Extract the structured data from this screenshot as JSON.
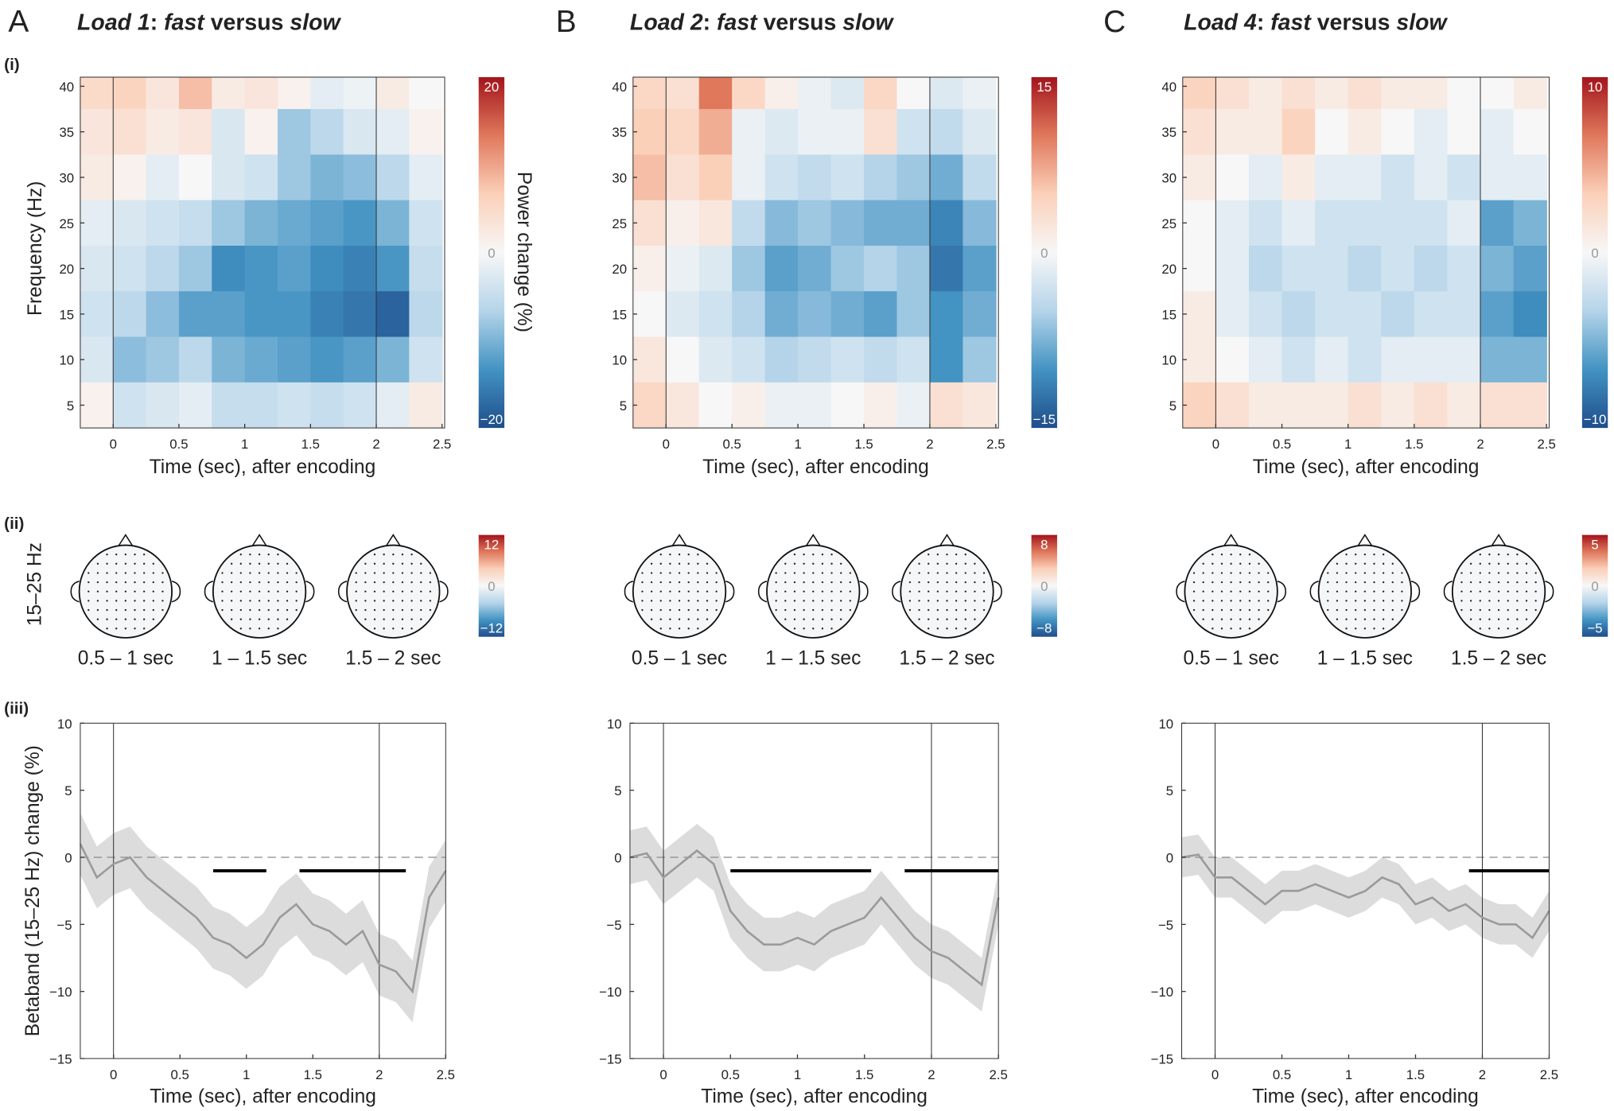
{
  "panels": [
    {
      "letter": "A",
      "title": [
        "Load 1",
        ": ",
        "fast",
        " versus ",
        "slow"
      ],
      "title_italic": [
        true,
        false,
        true,
        false,
        true
      ]
    },
    {
      "letter": "B",
      "title": [
        "Load 2",
        ": ",
        "fast",
        " versus ",
        "slow"
      ],
      "title_italic": [
        true,
        false,
        true,
        false,
        true
      ]
    },
    {
      "letter": "C",
      "title": [
        "Load 4",
        ": ",
        "fast",
        " versus ",
        "slow"
      ],
      "title_italic": [
        true,
        false,
        true,
        false,
        true
      ]
    }
  ],
  "row_labels": [
    "(i)",
    "(ii)",
    "(iii)"
  ],
  "colormap": [
    "#1f4e8c",
    "#4393c3",
    "#b5d4e9",
    "#f7f7f7",
    "#fbd0b9",
    "#e0785c",
    "#a3141c"
  ],
  "topo": {
    "ylabel": "15–25 Hz",
    "panels": [
      {
        "labels": [
          "0.5 – 1 sec",
          "1 – 1.5 sec",
          "1.5 – 2 sec"
        ],
        "clim": [
          -12,
          12
        ],
        "cticks": [
          {
            "value": -12,
            "label": "−12"
          },
          0,
          12
        ]
      },
      {
        "labels": [
          "0.5 – 1 sec",
          "1 – 1.5 sec",
          "1.5 – 2 sec"
        ],
        "clim": [
          -8,
          8
        ],
        "cticks": [
          {
            "value": -8,
            "label": "−8"
          },
          0,
          8
        ]
      },
      {
        "labels": [
          "0.5 – 1 sec",
          "1 – 1.5 sec",
          "1.5 – 2 sec"
        ],
        "clim": [
          -5,
          5
        ],
        "cticks": [
          {
            "value": -5,
            "label": "−5"
          },
          0,
          5
        ]
      }
    ]
  },
  "chart_data": [
    {
      "type": "heatmap",
      "xlabel": "Time (sec), after encoding",
      "ylabel": "Frequency (Hz)",
      "clabel": "Power change (%)",
      "x": [
        -0.125,
        0.125,
        0.375,
        0.625,
        0.875,
        1.125,
        1.375,
        1.625,
        1.875,
        2.125,
        2.375
      ],
      "y": [
        40,
        35,
        30,
        25,
        20,
        15,
        10,
        5
      ],
      "z": [
        [
          5,
          6,
          3,
          8,
          2,
          3,
          1,
          -2,
          -1,
          2,
          0
        ],
        [
          3,
          4,
          2,
          3,
          -3,
          1,
          -8,
          -6,
          -3,
          -2,
          1
        ],
        [
          2,
          1,
          -2,
          0,
          -3,
          -4,
          -8,
          -10,
          -9,
          -6,
          -2
        ],
        [
          -2,
          -3,
          -4,
          -5,
          -8,
          -10,
          -11,
          -12,
          -13,
          -10,
          -4
        ],
        [
          -3,
          -4,
          -6,
          -8,
          -14,
          -13,
          -12,
          -14,
          -15,
          -13,
          -5
        ],
        [
          -4,
          -6,
          -9,
          -12,
          -12,
          -13,
          -13,
          -15,
          -16,
          -18,
          -6
        ],
        [
          -3,
          -9,
          -8,
          -6,
          -10,
          -11,
          -12,
          -13,
          -12,
          -10,
          -4
        ],
        [
          1,
          -4,
          -3,
          -2,
          -5,
          -5,
          -4,
          -5,
          -4,
          -2,
          2
        ]
      ],
      "xlim": [
        -0.25,
        2.52
      ],
      "ylim": [
        2.5,
        41
      ],
      "xticks": [
        0,
        0.5,
        1,
        1.5,
        2,
        2.5
      ],
      "yticks": [
        5,
        10,
        15,
        20,
        25,
        30,
        35,
        40
      ],
      "clim": [
        -20,
        20
      ],
      "cticks": [
        {
          "value": -20,
          "label": "−20"
        },
        0,
        20
      ],
      "vlines": [
        0,
        2
      ]
    },
    {
      "type": "heatmap",
      "xlabel": "Time (sec), after encoding",
      "x": [
        -0.125,
        0.125,
        0.375,
        0.625,
        0.875,
        1.125,
        1.375,
        1.625,
        1.875,
        2.125,
        2.375
      ],
      "y": [
        40,
        35,
        30,
        25,
        20,
        15,
        10,
        5
      ],
      "z": [
        [
          4,
          3,
          10,
          4,
          1,
          -1,
          -2,
          4,
          0,
          -2,
          -1
        ],
        [
          5,
          4,
          7,
          -1,
          -2,
          -1,
          -1,
          3,
          -3,
          -4,
          -2
        ],
        [
          6,
          3,
          5,
          -1,
          -3,
          -4,
          -3,
          -5,
          -6,
          -8,
          -4
        ],
        [
          3,
          1,
          2,
          -4,
          -7,
          -6,
          -7,
          -8,
          -8,
          -11,
          -7
        ],
        [
          1,
          -1,
          -2,
          -6,
          -9,
          -8,
          -6,
          -5,
          -6,
          -12,
          -9
        ],
        [
          0,
          -2,
          -3,
          -5,
          -8,
          -7,
          -8,
          -9,
          -6,
          -10,
          -8
        ],
        [
          2,
          0,
          -2,
          -3,
          -5,
          -4,
          -3,
          -4,
          -3,
          -10,
          -6
        ],
        [
          4,
          2,
          0,
          1,
          -1,
          -1,
          0,
          1,
          -1,
          3,
          2
        ]
      ],
      "xlim": [
        -0.25,
        2.52
      ],
      "ylim": [
        2.5,
        41
      ],
      "xticks": [
        0,
        0.5,
        1,
        1.5,
        2,
        2.5
      ],
      "yticks": [
        5,
        10,
        15,
        20,
        25,
        30,
        35,
        40
      ],
      "clim": [
        -15,
        15
      ],
      "cticks": [
        {
          "value": -15,
          "label": "−15"
        },
        0,
        15
      ],
      "vlines": [
        0,
        2
      ]
    },
    {
      "type": "heatmap",
      "xlabel": "Time (sec), after encoding",
      "x": [
        -0.125,
        0.125,
        0.375,
        0.625,
        0.875,
        1.125,
        1.375,
        1.625,
        1.875,
        2.125,
        2.375
      ],
      "y": [
        40,
        35,
        30,
        25,
        20,
        15,
        10,
        5
      ],
      "z": [
        [
          3,
          2,
          1,
          2,
          1,
          2,
          1,
          1,
          0,
          0,
          1
        ],
        [
          2,
          1,
          1,
          3,
          0,
          1,
          0,
          -1,
          0,
          -1,
          0
        ],
        [
          1,
          0,
          -1,
          1,
          -1,
          -1,
          -2,
          -1,
          -2,
          -1,
          -1
        ],
        [
          0,
          -1,
          -2,
          -1,
          -2,
          -2,
          -2,
          -2,
          -1,
          -6,
          -5
        ],
        [
          0,
          -1,
          -3,
          -2,
          -2,
          -3,
          -2,
          -3,
          -2,
          -5,
          -6
        ],
        [
          1,
          -1,
          -2,
          -3,
          -2,
          -2,
          -3,
          -2,
          -2,
          -6,
          -7
        ],
        [
          1,
          0,
          -1,
          -2,
          -1,
          -2,
          -1,
          -1,
          -1,
          -5,
          -5
        ],
        [
          3,
          2,
          1,
          1,
          1,
          2,
          1,
          2,
          1,
          2,
          2
        ]
      ],
      "xlim": [
        -0.25,
        2.52
      ],
      "ylim": [
        2.5,
        41
      ],
      "xticks": [
        0,
        0.5,
        1,
        1.5,
        2,
        2.5
      ],
      "yticks": [
        5,
        10,
        15,
        20,
        25,
        30,
        35,
        40
      ],
      "clim": [
        -10,
        10
      ],
      "cticks": [
        {
          "value": -10,
          "label": "−10"
        },
        0,
        10
      ],
      "vlines": [
        0,
        2
      ]
    },
    {
      "type": "line",
      "xlabel": "Time (sec), after encoding",
      "ylabel": "Betaband (15–25 Hz) change (%)",
      "color": "#9a9a9a",
      "band_color": "#dcdcdc",
      "x": [
        -0.25,
        -0.125,
        0,
        0.125,
        0.25,
        0.375,
        0.5,
        0.625,
        0.75,
        0.875,
        1,
        1.125,
        1.25,
        1.375,
        1.5,
        1.625,
        1.75,
        1.875,
        2,
        2.125,
        2.25,
        2.375,
        2.5
      ],
      "values": [
        1,
        -1.5,
        -0.5,
        0,
        -1.5,
        -2.5,
        -3.5,
        -4.5,
        -6,
        -6.5,
        -7.5,
        -6.5,
        -4.5,
        -3.5,
        -5,
        -5.5,
        -6.5,
        -5.5,
        -8,
        -8.5,
        -10,
        -3,
        -1
      ],
      "error": [
        2.3,
        2.3,
        2.3,
        2.3,
        2.3,
        2.3,
        2.3,
        2.3,
        2.3,
        2.3,
        2.3,
        2.3,
        2.3,
        2.3,
        2.3,
        2.3,
        2.3,
        2.3,
        2.3,
        2.3,
        2.3,
        2.3,
        2.3
      ],
      "xlim": [
        -0.25,
        2.5
      ],
      "ylim": [
        -15,
        10
      ],
      "xticks": [
        0,
        0.5,
        1,
        1.5,
        2,
        2.5
      ],
      "yticks": [
        {
          "value": -15,
          "label": "−15"
        },
        {
          "value": -10,
          "label": "−10"
        },
        {
          "value": -5,
          "label": "−5"
        },
        0,
        5,
        10
      ],
      "hline": 0,
      "vlines": [
        0,
        2
      ],
      "sig_y": -1,
      "sig_bars": [
        [
          0.75,
          1.15
        ],
        [
          1.4,
          2.2
        ]
      ]
    },
    {
      "type": "line",
      "xlabel": "Time (sec), after encoding",
      "color": "#9a9a9a",
      "band_color": "#dcdcdc",
      "x": [
        -0.25,
        -0.125,
        0,
        0.125,
        0.25,
        0.375,
        0.5,
        0.625,
        0.75,
        0.875,
        1,
        1.125,
        1.25,
        1.375,
        1.5,
        1.625,
        1.75,
        1.875,
        2,
        2.125,
        2.25,
        2.375,
        2.5
      ],
      "values": [
        0,
        0.3,
        -1.5,
        -0.5,
        0.5,
        -0.5,
        -4,
        -5.5,
        -6.5,
        -6.5,
        -6,
        -6.5,
        -5.5,
        -5,
        -4.5,
        -3,
        -4.5,
        -6,
        -7,
        -7.5,
        -8.5,
        -9.5,
        -3
      ],
      "error": [
        2,
        2,
        2,
        2,
        2,
        2,
        2,
        2,
        2,
        2,
        2,
        2,
        2,
        2,
        2,
        2,
        2,
        2,
        2,
        2,
        2,
        2,
        2
      ],
      "xlim": [
        -0.25,
        2.5
      ],
      "ylim": [
        -15,
        10
      ],
      "xticks": [
        0,
        0.5,
        1,
        1.5,
        2,
        2.5
      ],
      "yticks": [
        {
          "value": -15,
          "label": "−15"
        },
        {
          "value": -10,
          "label": "−10"
        },
        {
          "value": -5,
          "label": "−5"
        },
        0,
        5,
        10
      ],
      "hline": 0,
      "vlines": [
        0,
        2
      ],
      "sig_y": -1,
      "sig_bars": [
        [
          0.5,
          1.55
        ],
        [
          1.8,
          2.5
        ]
      ]
    },
    {
      "type": "line",
      "xlabel": "Time (sec), after encoding",
      "color": "#9a9a9a",
      "band_color": "#dcdcdc",
      "x": [
        -0.25,
        -0.125,
        0,
        0.125,
        0.25,
        0.375,
        0.5,
        0.625,
        0.75,
        0.875,
        1,
        1.125,
        1.25,
        1.375,
        1.5,
        1.625,
        1.75,
        1.875,
        2,
        2.125,
        2.25,
        2.375,
        2.5
      ],
      "values": [
        0,
        0.2,
        -1.5,
        -1.5,
        -2.5,
        -3.5,
        -2.5,
        -2.5,
        -2,
        -2.5,
        -3,
        -2.5,
        -1.5,
        -2,
        -3.5,
        -3,
        -4,
        -3.5,
        -4.5,
        -5,
        -5,
        -6,
        -4
      ],
      "error": [
        1.5,
        1.5,
        1.5,
        1.5,
        1.5,
        1.5,
        1.5,
        1.5,
        1.5,
        1.5,
        1.5,
        1.5,
        1.5,
        1.5,
        1.5,
        1.5,
        1.5,
        1.5,
        1.5,
        1.5,
        1.5,
        1.5,
        1.5
      ],
      "xlim": [
        -0.25,
        2.5
      ],
      "ylim": [
        -15,
        10
      ],
      "xticks": [
        0,
        0.5,
        1,
        1.5,
        2,
        2.5
      ],
      "yticks": [
        {
          "value": -15,
          "label": "−15"
        },
        {
          "value": -10,
          "label": "−10"
        },
        {
          "value": -5,
          "label": "−5"
        },
        0,
        5,
        10
      ],
      "hline": 0,
      "vlines": [
        0,
        2
      ],
      "sig_y": -1,
      "sig_bars": [
        [
          1.9,
          2.5
        ]
      ]
    }
  ]
}
